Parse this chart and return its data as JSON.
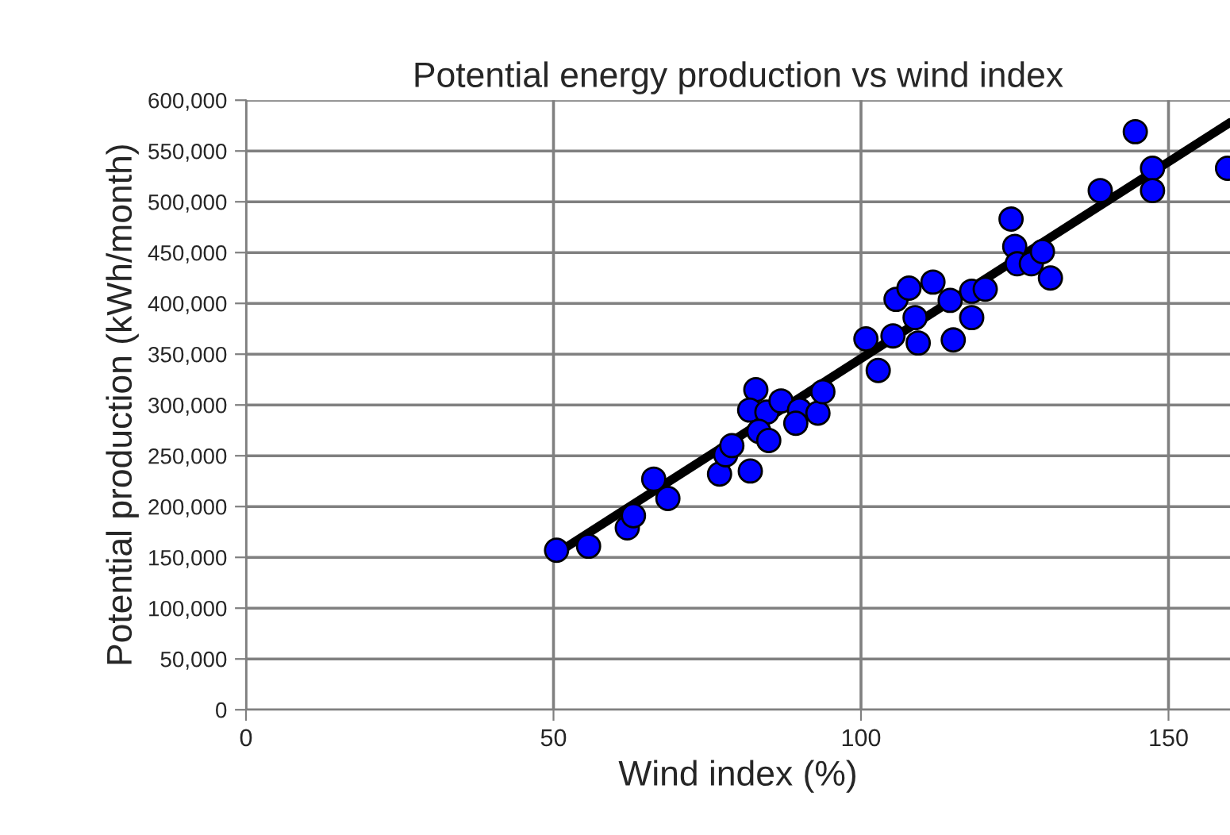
{
  "chart_data": {
    "type": "scatter",
    "title": "Potential energy production vs wind index",
    "xlabel": "Wind index (%)",
    "ylabel": "Potential production (kWh/month)",
    "xlim": [
      0,
      160
    ],
    "xticks": [
      0,
      50,
      100,
      150
    ],
    "ylim": [
      0,
      600000
    ],
    "yticks": [
      {
        "value": 0,
        "label": "0"
      },
      {
        "value": 50000,
        "label": "50,000"
      },
      {
        "value": 100000,
        "label": "100,000"
      },
      {
        "value": 150000,
        "label": "150,000"
      },
      {
        "value": 200000,
        "label": "200,000"
      },
      {
        "value": 250000,
        "label": "250,000"
      },
      {
        "value": 300000,
        "label": "300,000"
      },
      {
        "value": 350000,
        "label": "350,000"
      },
      {
        "value": 400000,
        "label": "400,000"
      },
      {
        "value": 450000,
        "label": "450,000"
      },
      {
        "value": 500000,
        "label": "500,000"
      },
      {
        "value": 550000,
        "label": "550,000"
      },
      {
        "value": 600000,
        "label": "600,000"
      }
    ],
    "grid": true,
    "marker": "circle",
    "series": [
      {
        "type": "line",
        "marker": "none",
        "color": "#000000",
        "x": [
          50,
          160
        ],
        "values": [
          152000,
          578000
        ]
      },
      {
        "color": "#0000ff",
        "x": [
          50.5,
          55.7,
          62,
          63,
          66.3,
          68.6,
          77,
          78,
          79,
          82,
          82.9,
          81.9,
          84.7,
          83.4,
          85,
          87,
          90,
          89.4,
          93,
          93.8,
          100.8,
          102.8,
          105.2,
          105.7,
          107.8,
          108.8,
          109.3,
          111.7,
          114.5,
          115,
          118,
          118,
          120.2,
          124.4,
          125,
          125.4,
          127.7,
          129.5,
          130.8,
          138.9,
          144.6,
          147.4,
          147.4,
          159.6
        ],
        "values": [
          157000,
          161000,
          179000,
          191000,
          227000,
          208000,
          232000,
          251000,
          260000,
          235000,
          315000,
          295000,
          293000,
          274000,
          265000,
          304000,
          295000,
          282000,
          292000,
          313000,
          365000,
          334000,
          368000,
          404000,
          415000,
          386000,
          361000,
          421000,
          403000,
          364000,
          412000,
          386000,
          414000,
          483000,
          456000,
          439000,
          439000,
          451000,
          425000,
          511000,
          569000,
          533000,
          511000,
          533000
        ]
      }
    ]
  }
}
